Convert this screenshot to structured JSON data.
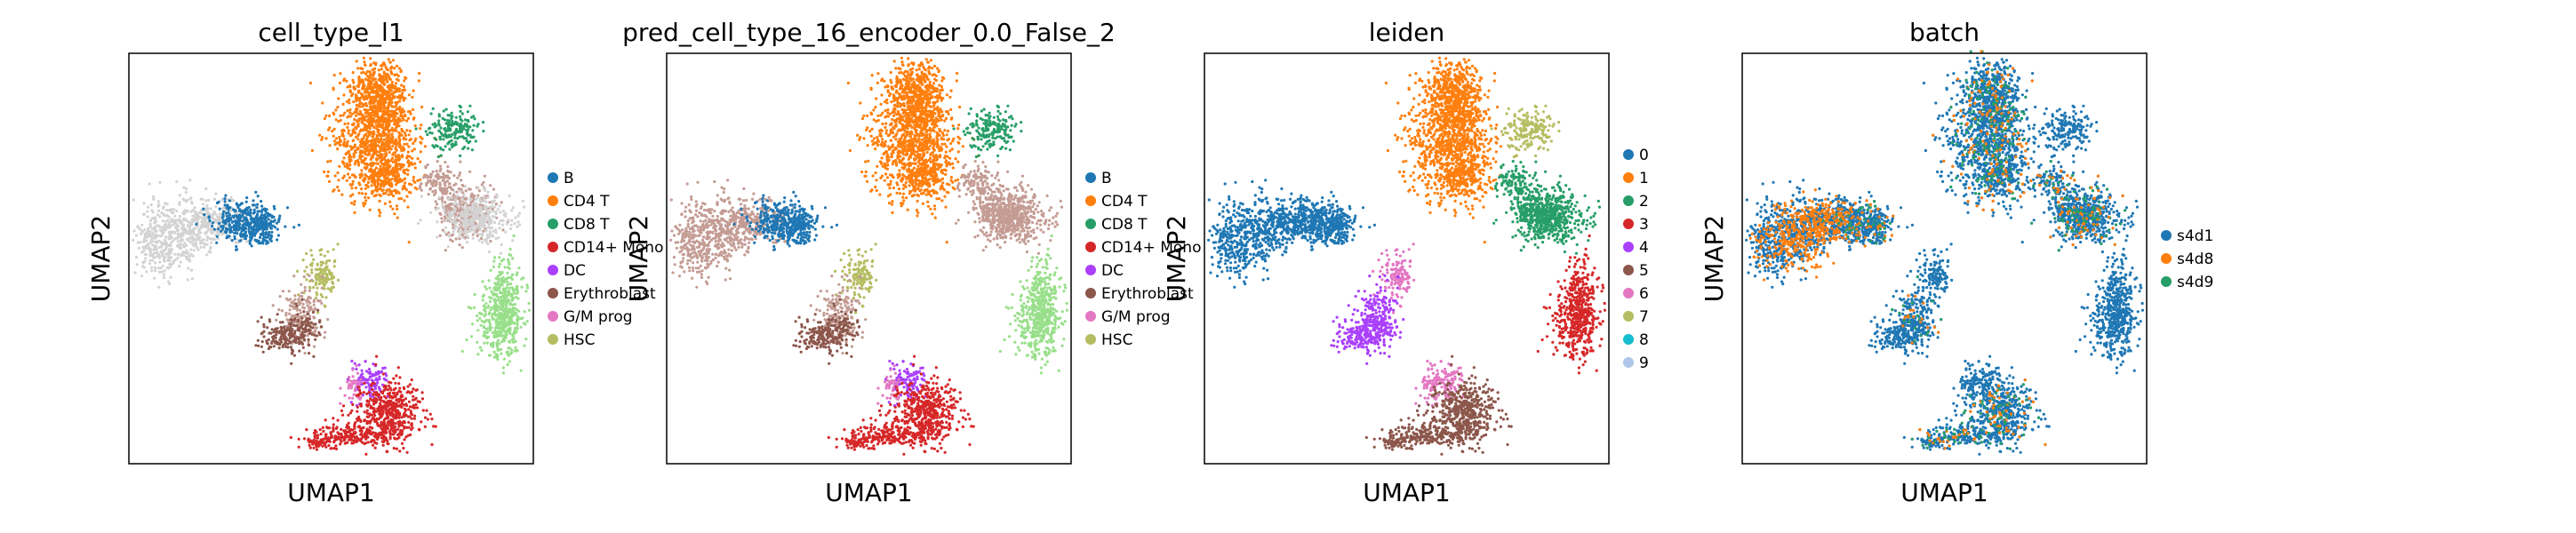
{
  "chart_data": [
    {
      "type": "scatter",
      "title": "cell_type_l1",
      "xlabel": "UMAP1",
      "ylabel": "UMAP2",
      "grid": false,
      "legend": {
        "placement": "right",
        "entries": [
          "B",
          "CD4 T",
          "CD8 T",
          "CD14+ Mono",
          "DC",
          "Erythroblast",
          "G/M prog",
          "HSC"
        ]
      },
      "colors": [
        "#1f77b4",
        "#ff7f0e",
        "#279e68",
        "#d62728",
        "#aa40fc",
        "#8c564b",
        "#e377c2",
        "#b5bd61"
      ],
      "unlabeled_color": "#d3d3d3"
    },
    {
      "type": "scatter",
      "title": "pred_cell_type_16_encoder_0.0_False_2",
      "xlabel": "UMAP1",
      "ylabel": "UMAP2",
      "grid": false,
      "legend": {
        "placement": "right",
        "entries": [
          "B",
          "CD4 T",
          "CD8 T",
          "CD14+ Mono",
          "DC",
          "Erythroblast",
          "G/M prog",
          "HSC"
        ]
      },
      "colors": [
        "#1f77b4",
        "#ff7f0e",
        "#279e68",
        "#d62728",
        "#aa40fc",
        "#8c564b",
        "#e377c2",
        "#b5bd61"
      ]
    },
    {
      "type": "scatter",
      "title": "leiden",
      "xlabel": "UMAP1",
      "ylabel": "UMAP2",
      "grid": false,
      "legend": {
        "placement": "right",
        "entries": [
          "0",
          "1",
          "2",
          "3",
          "4",
          "5",
          "6",
          "7",
          "8",
          "9"
        ]
      },
      "colors": [
        "#1f77b4",
        "#ff7f0e",
        "#279e68",
        "#d62728",
        "#aa40fc",
        "#8c564b",
        "#e377c2",
        "#b5bd61",
        "#17becf",
        "#aec7e8"
      ]
    },
    {
      "type": "scatter",
      "title": "batch",
      "xlabel": "UMAP1",
      "ylabel": "UMAP2",
      "grid": false,
      "legend": {
        "placement": "right",
        "entries": [
          "s4d1",
          "s4d8",
          "s4d9"
        ]
      },
      "colors": [
        "#1f77b4",
        "#ff7f0e",
        "#279e68"
      ]
    }
  ],
  "colors": {
    "light_green": "#98df8a",
    "light_blue": "#aec7e8",
    "rose_brown": "#c49c94",
    "light_gray": "#d3d3d3"
  }
}
